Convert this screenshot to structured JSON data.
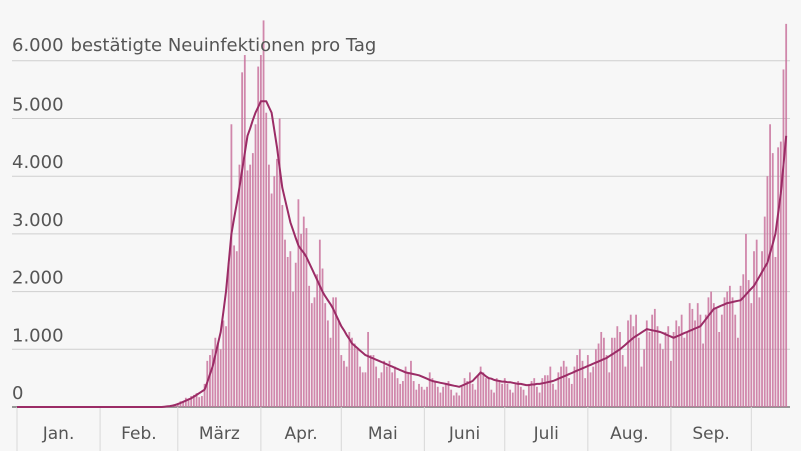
{
  "chart_data": {
    "type": "bar",
    "title": "bestätigte Neuinfektionen pro Tag",
    "months": [
      "Jan.",
      "Feb.",
      "März",
      "Apr.",
      "Mai",
      "Juni",
      "Juli",
      "Aug.",
      "Sep."
    ],
    "xticks": [
      0,
      31,
      60,
      91,
      121,
      152,
      182,
      213,
      244,
      274
    ],
    "xlim": [
      0,
      288
    ],
    "ylim": [
      0,
      7050
    ],
    "yticks": [
      0,
      {
        "value": 1000,
        "label": "1.000"
      },
      {
        "value": 2000,
        "label": "2.000"
      },
      {
        "value": 3000,
        "label": "3.000"
      },
      {
        "value": 4000,
        "label": "4.000"
      },
      {
        "value": 5000,
        "label": "5.000"
      },
      {
        "value": 6000,
        "label": "6.000"
      }
    ],
    "grid": true,
    "series": [
      {
        "type": "bar",
        "color": "#c9739d",
        "values": [
          0,
          0,
          0,
          0,
          0,
          0,
          0,
          0,
          0,
          0,
          0,
          0,
          0,
          0,
          0,
          0,
          0,
          0,
          0,
          0,
          0,
          0,
          0,
          0,
          0,
          0,
          0,
          1,
          3,
          0,
          1,
          1,
          2,
          0,
          0,
          0,
          1,
          1,
          0,
          0,
          0,
          0,
          0,
          0,
          0,
          0,
          0,
          0,
          0,
          0,
          0,
          0,
          0,
          0,
          0,
          2,
          10,
          20,
          30,
          50,
          70,
          100,
          80,
          160,
          150,
          190,
          210,
          240,
          170,
          190,
          400,
          800,
          900,
          1000,
          1200,
          1100,
          1000,
          1500,
          1400,
          2500,
          4900,
          2800,
          2700,
          4200,
          5800,
          6100,
          4100,
          4200,
          4400,
          4900,
          5900,
          6100,
          6700,
          5100,
          4200,
          3700,
          4000,
          4300,
          5000,
          3500,
          2900,
          2600,
          2700,
          2000,
          2500,
          3600,
          3000,
          3300,
          3100,
          2100,
          1800,
          1900,
          2300,
          2900,
          2400,
          1800,
          1500,
          1200,
          1900,
          1900,
          1500,
          900,
          800,
          700,
          1300,
          1200,
          1100,
          1000,
          700,
          600,
          600,
          1300,
          900,
          900,
          700,
          500,
          600,
          800,
          700,
          800,
          600,
          700,
          500,
          400,
          450,
          700,
          600,
          800,
          450,
          300,
          400,
          350,
          300,
          350,
          600,
          500,
          450,
          350,
          250,
          350,
          400,
          450,
          300,
          200,
          250,
          200,
          350,
          500,
          450,
          600,
          400,
          300,
          550,
          700,
          600,
          500,
          500,
          300,
          250,
          500,
          450,
          400,
          500,
          400,
          300,
          250,
          400,
          450,
          350,
          300,
          200,
          400,
          450,
          500,
          350,
          250,
          500,
          550,
          550,
          700,
          400,
          300,
          600,
          700,
          800,
          700,
          500,
          400,
          700,
          900,
          1000,
          800,
          500,
          900,
          600,
          700,
          1000,
          1100,
          1300,
          1200,
          900,
          600,
          1200,
          1200,
          1400,
          1300,
          900,
          700,
          1500,
          1600,
          1400,
          1600,
          1200,
          700,
          1000,
          1500,
          1300,
          1600,
          1700,
          1400,
          1100,
          1000,
          1300,
          1400,
          800,
          1300,
          1500,
          1400,
          1600,
          1200,
          1300,
          1800,
          1700,
          1500,
          1800,
          1600,
          1100,
          1600,
          1900,
          2000,
          1800,
          1700,
          1300,
          1600,
          1900,
          2000,
          2100,
          1900,
          1600,
          1200,
          2100,
          2300,
          3000,
          2200,
          1800,
          2700,
          2900,
          1900,
          2700,
          3300,
          4000,
          4900,
          4400,
          2600,
          4500,
          4600,
          5850,
          6640
        ]
      },
      {
        "type": "line",
        "color": "#9b2c66",
        "values": [
          0,
          0,
          0,
          0,
          0,
          0,
          0,
          0,
          0,
          0,
          0,
          0,
          0,
          0,
          0,
          0,
          0,
          0,
          0,
          0,
          0,
          0,
          0,
          0,
          0,
          0,
          0,
          0,
          0,
          0,
          0,
          0,
          0,
          0,
          0,
          0,
          0,
          0,
          0,
          0,
          0,
          0,
          0,
          0,
          0,
          0,
          0,
          0,
          0,
          0,
          0,
          0,
          0,
          0,
          0,
          5,
          10,
          15,
          25,
          35,
          50,
          70,
          90,
          110,
          130,
          150,
          180,
          210,
          240,
          270,
          300,
          430,
          570,
          700,
          900,
          1100,
          1300,
          1650,
          2000,
          2500,
          3000,
          3270,
          3530,
          3800,
          4100,
          4400,
          4700,
          4830,
          4970,
          5100,
          5200,
          5300,
          5300,
          5300,
          5200,
          5100,
          4800,
          4500,
          4150,
          3800,
          3600,
          3400,
          3200,
          3070,
          2930,
          2800,
          2730,
          2670,
          2600,
          2500,
          2400,
          2300,
          2200,
          2100,
          2000,
          1920,
          1850,
          1780,
          1700,
          1600,
          1500,
          1400,
          1330,
          1250,
          1180,
          1100,
          1060,
          1020,
          980,
          940,
          900,
          880,
          860,
          840,
          820,
          800,
          780,
          760,
          740,
          720,
          700,
          680,
          660,
          640,
          620,
          600,
          590,
          580,
          570,
          560,
          550,
          530,
          510,
          490,
          470,
          450,
          440,
          430,
          420,
          410,
          400,
          390,
          380,
          370,
          360,
          350,
          370,
          390,
          410,
          430,
          450,
          500,
          550,
          600,
          570,
          530,
          500,
          490,
          470,
          460,
          450,
          440,
          440,
          430,
          430,
          420,
          410,
          400,
          400,
          390,
          380,
          380,
          390,
          390,
          400,
          400,
          410,
          420,
          430,
          440,
          450,
          470,
          490,
          510,
          530,
          550,
          570,
          590,
          610,
          630,
          650,
          670,
          690,
          710,
          730,
          750,
          770,
          790,
          810,
          830,
          850,
          880,
          910,
          940,
          970,
          1000,
          1040,
          1080,
          1120,
          1160,
          1200,
          1230,
          1260,
          1290,
          1320,
          1350,
          1340,
          1330,
          1320,
          1310,
          1300,
          1280,
          1260,
          1240,
          1220,
          1200,
          1220,
          1240,
          1260,
          1280,
          1300,
          1320,
          1340,
          1360,
          1380,
          1400,
          1460,
          1520,
          1580,
          1640,
          1700,
          1720,
          1740,
          1760,
          1780,
          1800,
          1810,
          1820,
          1830,
          1840,
          1850,
          1900,
          1950,
          2000,
          2050,
          2100,
          2180,
          2260,
          2340,
          2420,
          2500,
          2670,
          2830,
          3000,
          3350,
          3700,
          4200,
          4700
        ]
      }
    ]
  }
}
